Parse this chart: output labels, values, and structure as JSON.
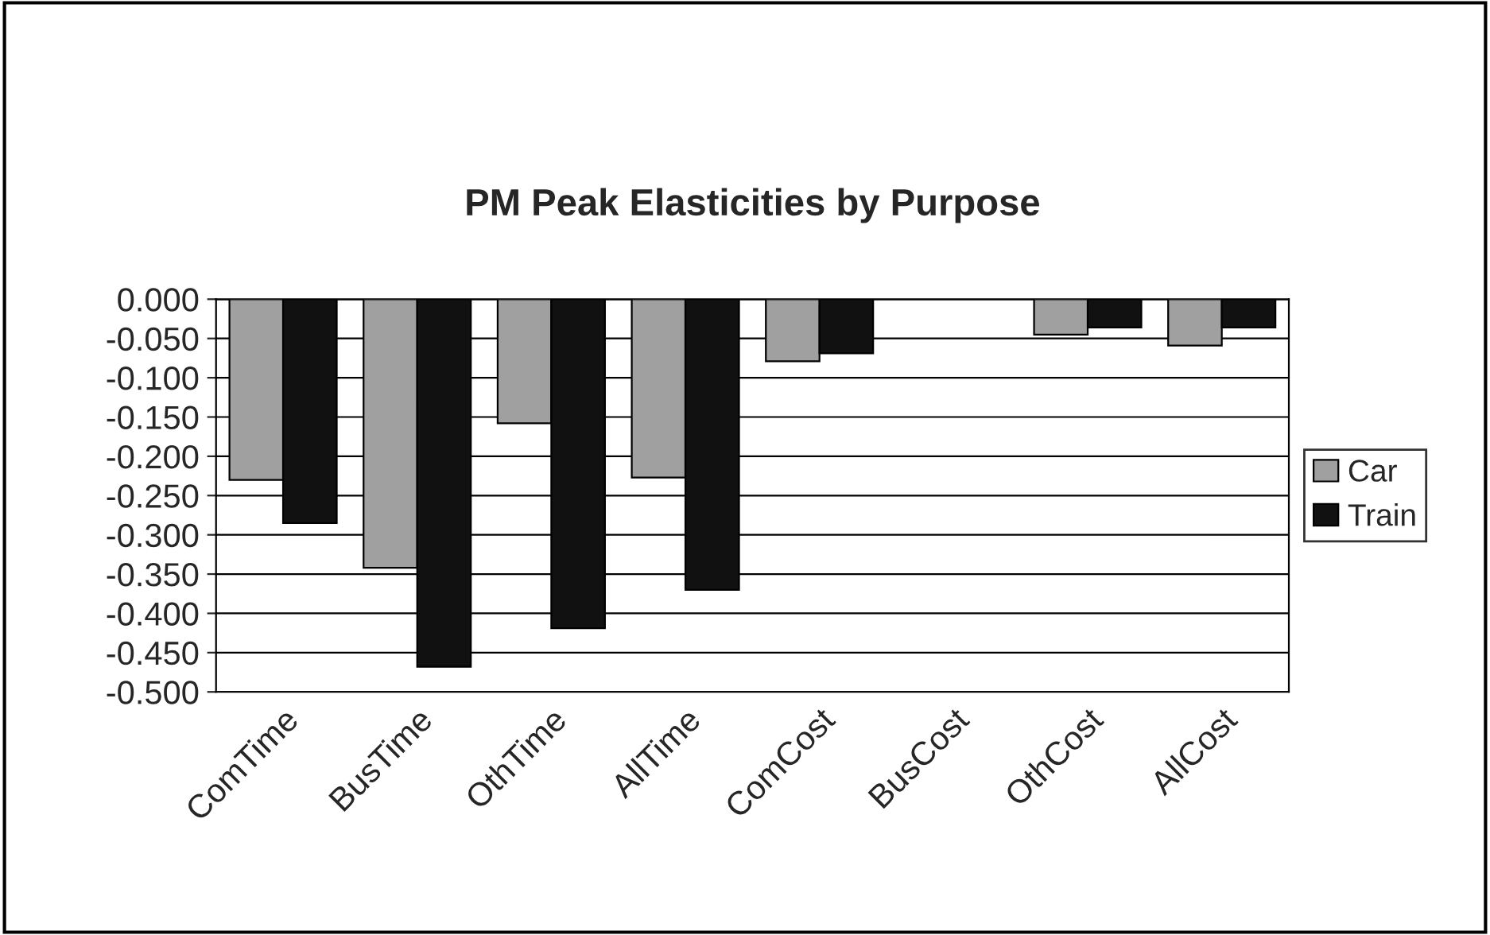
{
  "chart_data": {
    "type": "bar",
    "title": "PM Peak Elasticities by Purpose",
    "categories": [
      "ComTime",
      "BusTime",
      "OthTime",
      "AllTime",
      "ComCost",
      "BusCost",
      "OthCost",
      "AllCost"
    ],
    "series": [
      {
        "name": "Car",
        "color": "#a0a0a0",
        "values": [
          -0.23,
          -0.342,
          -0.158,
          -0.227,
          -0.079,
          null,
          -0.045,
          -0.059
        ]
      },
      {
        "name": "Train",
        "color": "#111111",
        "values": [
          -0.285,
          -0.468,
          -0.419,
          -0.37,
          -0.069,
          null,
          -0.036,
          -0.036
        ]
      }
    ],
    "ylim": [
      -0.5,
      0
    ],
    "yticks": [
      {
        "value": 0,
        "label": "0.000"
      },
      {
        "value": -0.05,
        "label": "-0.050"
      },
      {
        "value": -0.1,
        "label": "-0.100"
      },
      {
        "value": -0.15,
        "label": "-0.150"
      },
      {
        "value": -0.2,
        "label": "-0.200"
      },
      {
        "value": -0.25,
        "label": "-0.250"
      },
      {
        "value": -0.3,
        "label": "-0.300"
      },
      {
        "value": -0.35,
        "label": "-0.350"
      },
      {
        "value": -0.4,
        "label": "-0.400"
      },
      {
        "value": -0.45,
        "label": "-0.450"
      },
      {
        "value": -0.5,
        "label": "-0.500"
      }
    ],
    "grid": "y",
    "legend": "right"
  }
}
